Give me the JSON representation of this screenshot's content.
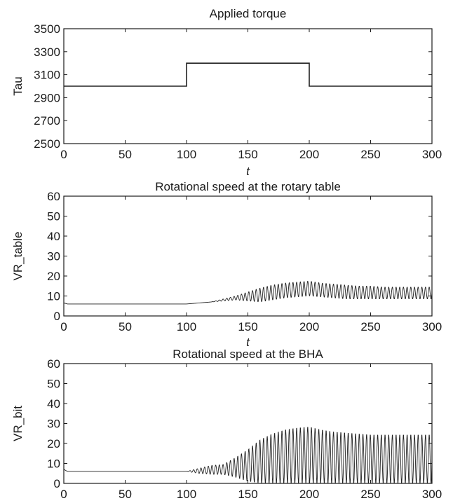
{
  "chart_data": [
    {
      "type": "line",
      "title": "Applied torque",
      "xlabel": "t",
      "ylabel": "Tau",
      "xlim": [
        0,
        300
      ],
      "ylim": [
        2500,
        3500
      ],
      "xticks": [
        "0",
        "50",
        "100",
        "150",
        "200",
        "250",
        "300"
      ],
      "yticks": [
        "2500",
        "2700",
        "2900",
        "3100",
        "3300",
        "3500"
      ],
      "grid": false,
      "series": [
        {
          "x": [
            0,
            100,
            100,
            200,
            200,
            300
          ],
          "y": [
            3000,
            3000,
            3200,
            3200,
            3000,
            3000
          ]
        }
      ]
    },
    {
      "type": "line",
      "title": "Rotational speed at the rotary table",
      "xlabel": "t",
      "ylabel": "VR_table",
      "xlim": [
        0,
        300
      ],
      "ylim": [
        0,
        60
      ],
      "xticks": [
        "0",
        "50",
        "100",
        "150",
        "200",
        "250",
        "300"
      ],
      "yticks": [
        "0",
        "10",
        "20",
        "30",
        "40",
        "50",
        "60"
      ],
      "grid": false,
      "series": [
        {
          "x": [
            0,
            3,
            50,
            100,
            110,
            120,
            130,
            140,
            150,
            160,
            170,
            180,
            190,
            200,
            210,
            220,
            230,
            240,
            250,
            260,
            270,
            280,
            290,
            300
          ],
          "y_mean": [
            6.5,
            6,
            6,
            6,
            6.5,
            7,
            8,
            9,
            10,
            11,
            12,
            12.5,
            13,
            13.5,
            13,
            12.5,
            12,
            12,
            11.5,
            11.5,
            11.5,
            11.5,
            11.5,
            11.5
          ],
          "y_min": [
            6.5,
            6,
            6,
            6,
            6.5,
            7,
            7.5,
            8,
            7.5,
            7,
            8,
            9,
            9.5,
            10,
            9.5,
            9,
            8.5,
            8.5,
            8.5,
            8.5,
            8.5,
            8.5,
            8.5,
            8.5
          ],
          "y_max": [
            6.5,
            6,
            6,
            6,
            6.5,
            7,
            8.5,
            10,
            12,
            14,
            15.5,
            16.5,
            17,
            17.5,
            16.5,
            16,
            15.5,
            15,
            15,
            14.5,
            14.5,
            14.5,
            14.5,
            14.5
          ]
        }
      ]
    },
    {
      "type": "line",
      "title": "Rotational speed at the BHA",
      "xlabel": "",
      "ylabel": "VR_bit",
      "xlim": [
        0,
        300
      ],
      "ylim": [
        0,
        60
      ],
      "xticks": [
        "0",
        "50",
        "100",
        "150",
        "200",
        "250",
        "300"
      ],
      "yticks": [
        "0",
        "10",
        "20",
        "30",
        "40",
        "50",
        "60"
      ],
      "grid": false,
      "series": [
        {
          "x": [
            0,
            3,
            50,
            100,
            110,
            120,
            130,
            140,
            150,
            160,
            170,
            180,
            190,
            200,
            210,
            220,
            230,
            240,
            250,
            260,
            270,
            280,
            290,
            300
          ],
          "y_mean": [
            7,
            6,
            6,
            6,
            6.5,
            7.5,
            8,
            9,
            11,
            13,
            14,
            14.5,
            15,
            15,
            14.5,
            13.5,
            13,
            12.5,
            12.5,
            12.5,
            12.5,
            12.5,
            12.5,
            12.5
          ],
          "y_min": [
            7,
            6,
            6,
            6,
            5,
            4.5,
            4.5,
            3,
            1,
            0,
            0,
            0,
            0,
            0,
            0,
            0,
            0,
            0,
            0,
            0,
            0,
            0,
            0,
            0
          ],
          "y_max": [
            7,
            6,
            6,
            6,
            7.5,
            9,
            9.5,
            13,
            17,
            22,
            25,
            27,
            28,
            28.5,
            27,
            26,
            25.5,
            25,
            24.5,
            24.5,
            24.5,
            24.5,
            24.5,
            24.5
          ]
        }
      ]
    }
  ]
}
